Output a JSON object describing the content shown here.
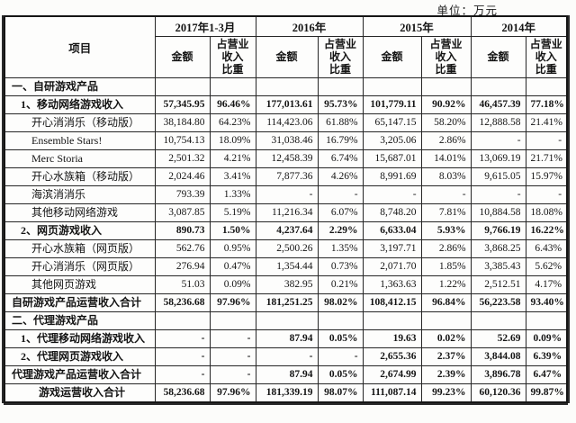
{
  "unit_label": "单位：万元",
  "table": {
    "item_header": "项目",
    "amount_header": "金额",
    "ratio_header": "占营业\n收入\n比重",
    "periods": [
      "2017年1-3月",
      "2016年",
      "2015年",
      "2014年"
    ],
    "rows": [
      {
        "label": "一、自研游戏产品",
        "indent": 1,
        "bold": true,
        "cells": [
          "",
          "",
          "",
          "",
          "",
          "",
          "",
          ""
        ]
      },
      {
        "label": "1、移动网络游戏收入",
        "indent": 2,
        "bold": true,
        "cells": [
          "57,345.95",
          "96.46%",
          "177,013.61",
          "95.73%",
          "101,779.11",
          "90.92%",
          "46,457.39",
          "77.18%"
        ]
      },
      {
        "label": "开心消消乐（移动版）",
        "indent": 3,
        "bold": false,
        "cells": [
          "38,184.80",
          "64.23%",
          "114,423.06",
          "61.88%",
          "65,147.15",
          "58.20%",
          "12,888.58",
          "21.41%"
        ]
      },
      {
        "label": "Ensemble Stars!",
        "indent": 3,
        "bold": false,
        "cells": [
          "10,754.13",
          "18.09%",
          "31,038.46",
          "16.79%",
          "3,205.06",
          "2.86%",
          "-",
          "-"
        ]
      },
      {
        "label": "Merc Storia",
        "indent": 3,
        "bold": false,
        "cells": [
          "2,501.32",
          "4.21%",
          "12,458.39",
          "6.74%",
          "15,687.01",
          "14.01%",
          "13,069.19",
          "21.71%"
        ]
      },
      {
        "label": "开心水族箱（移动版）",
        "indent": 3,
        "bold": false,
        "cells": [
          "2,024.46",
          "3.41%",
          "7,877.36",
          "4.26%",
          "8,991.69",
          "8.03%",
          "9,615.05",
          "15.97%"
        ]
      },
      {
        "label": "海滨消消乐",
        "indent": 3,
        "bold": false,
        "cells": [
          "793.39",
          "1.33%",
          "-",
          "-",
          "-",
          "-",
          "-",
          "-"
        ]
      },
      {
        "label": "其他移动网络游戏",
        "indent": 3,
        "bold": false,
        "cells": [
          "3,087.85",
          "5.19%",
          "11,216.34",
          "6.07%",
          "8,748.20",
          "7.81%",
          "10,884.58",
          "18.08%"
        ]
      },
      {
        "label": "2、网页游戏收入",
        "indent": 2,
        "bold": true,
        "cells": [
          "890.73",
          "1.50%",
          "4,237.64",
          "2.29%",
          "6,633.04",
          "5.93%",
          "9,766.19",
          "16.22%"
        ]
      },
      {
        "label": "开心水族箱（网页版）",
        "indent": 3,
        "bold": false,
        "cells": [
          "562.76",
          "0.95%",
          "2,500.26",
          "1.35%",
          "3,197.71",
          "2.86%",
          "3,868.25",
          "6.43%"
        ]
      },
      {
        "label": "开心消消乐（网页版）",
        "indent": 3,
        "bold": false,
        "cells": [
          "276.94",
          "0.47%",
          "1,354.44",
          "0.73%",
          "2,071.70",
          "1.85%",
          "3,385.43",
          "5.62%"
        ]
      },
      {
        "label": "其他网页游戏",
        "indent": 3,
        "bold": false,
        "cells": [
          "51.03",
          "0.09%",
          "382.95",
          "0.21%",
          "1,363.63",
          "1.22%",
          "2,512.51",
          "4.17%"
        ]
      },
      {
        "label": "自研游戏产品运营收入合计",
        "indent": 1,
        "bold": true,
        "cells": [
          "58,236.68",
          "97.96%",
          "181,251.25",
          "98.02%",
          "108,412.15",
          "96.84%",
          "56,223.58",
          "93.40%"
        ]
      },
      {
        "label": "二、代理游戏产品",
        "indent": 1,
        "bold": true,
        "cells": [
          "",
          "",
          "",
          "",
          "",
          "",
          "",
          ""
        ]
      },
      {
        "label": "1、代理移动网络游戏收入",
        "indent": 2,
        "bold": true,
        "cells": [
          "-",
          "-",
          "87.94",
          "0.05%",
          "19.63",
          "0.02%",
          "52.69",
          "0.09%"
        ]
      },
      {
        "label": "2、代理网页游戏收入",
        "indent": 2,
        "bold": true,
        "cells": [
          "-",
          "-",
          "-",
          "-",
          "2,655.36",
          "2.37%",
          "3,844.08",
          "6.39%"
        ]
      },
      {
        "label": "代理游戏产品运营收入合计",
        "indent": 1,
        "bold": true,
        "cells": [
          "-",
          "-",
          "87.94",
          "0.05%",
          "2,674.99",
          "2.39%",
          "3,896.78",
          "6.47%"
        ]
      },
      {
        "label": "游戏运营收入合计",
        "indent": 4,
        "bold": true,
        "cells": [
          "58,236.68",
          "97.96%",
          "181,339.19",
          "98.07%",
          "111,087.14",
          "99.23%",
          "60,120.36",
          "99.87%"
        ]
      }
    ]
  }
}
